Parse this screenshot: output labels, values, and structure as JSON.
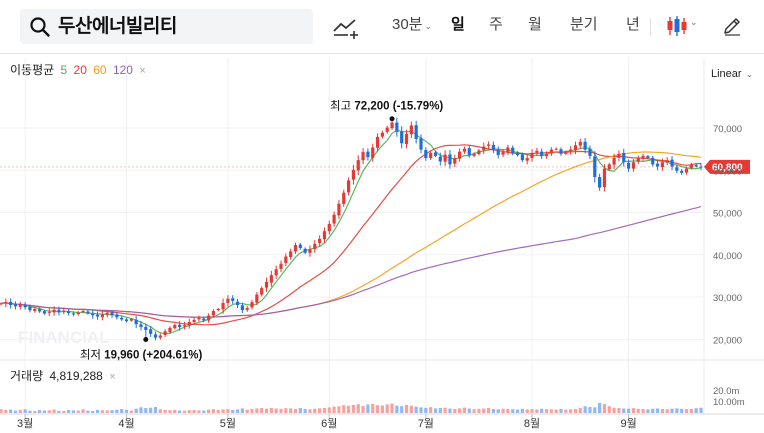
{
  "search": {
    "query": "두산에너빌리티"
  },
  "toolbar": {
    "intervals": [
      {
        "label": "30분",
        "active": false,
        "has_dropdown": true
      },
      {
        "label": "일",
        "active": true,
        "has_dropdown": false
      },
      {
        "label": "주",
        "active": false,
        "has_dropdown": false
      },
      {
        "label": "월",
        "active": false,
        "has_dropdown": false
      },
      {
        "label": "분기",
        "active": false,
        "has_dropdown": false
      },
      {
        "label": "년",
        "active": false,
        "has_dropdown": false
      }
    ],
    "icons": [
      "chart-type-icon",
      "candlestick-icon",
      "pencil-icon"
    ]
  },
  "legend": {
    "label": "이동평균",
    "periods": [
      {
        "label": "5",
        "color": "#4caf50"
      },
      {
        "label": "20",
        "color": "#e53935"
      },
      {
        "label": "60",
        "color": "#f39c12"
      },
      {
        "label": "120",
        "color": "#9b59b6"
      }
    ]
  },
  "scale_mode": "Linear",
  "current_price": {
    "label": "60,800",
    "value": 60800,
    "color": "#e53935"
  },
  "annotations": {
    "high": {
      "label": "최고",
      "value_text": "72,200 (-15.79%)",
      "value": 72200
    },
    "low": {
      "label": "최저",
      "value_text": "19,960 (+204.61%)",
      "value": 19960
    }
  },
  "volume": {
    "label": "거래량",
    "value_text": "4,819,288"
  },
  "watermark": "FINANCIAL",
  "chart_data": {
    "type": "candlestick",
    "x_axis": {
      "ticks": [
        "3월",
        "4월",
        "5월",
        "6월",
        "7월",
        "8월",
        "9월"
      ],
      "tick_index": [
        5,
        26,
        47,
        68,
        88,
        110,
        130
      ]
    },
    "y_axis": {
      "ticks": [
        "70,000",
        "60,000",
        "50,000",
        "40,000",
        "30,000",
        "20,000"
      ],
      "tick_values": [
        70000,
        60000,
        50000,
        40000,
        30000,
        20000
      ],
      "range": [
        17000,
        79000
      ]
    },
    "volume_axis": {
      "ticks": [
        "20.0m",
        "10.00m"
      ],
      "tick_values": [
        20,
        10
      ],
      "range": [
        0,
        30
      ]
    },
    "close": [
      28500,
      28800,
      28100,
      27800,
      28200,
      27600,
      26900,
      27200,
      26600,
      26100,
      26500,
      27000,
      26400,
      26800,
      26200,
      25900,
      26300,
      26700,
      26100,
      25700,
      25400,
      25900,
      26300,
      25700,
      25200,
      24700,
      24300,
      24800,
      23600,
      22900,
      22200,
      21300,
      20400,
      20900,
      21900,
      22700,
      23400,
      22900,
      23400,
      24100,
      24600,
      25100,
      24500,
      25600,
      26700,
      27200,
      28600,
      29600,
      29100,
      28100,
      26900,
      27400,
      28800,
      30600,
      32100,
      33600,
      35200,
      36600,
      37900,
      39600,
      40800,
      42300,
      41600,
      40500,
      41300,
      42600,
      43800,
      45600,
      47300,
      49500,
      52100,
      54700,
      57600,
      60100,
      62400,
      64300,
      63100,
      65400,
      67900,
      68900,
      70100,
      71300,
      69100,
      66400,
      68600,
      70600,
      67400,
      64900,
      62900,
      64100,
      63400,
      62100,
      63700,
      61400,
      62900,
      64400,
      65100,
      63600,
      63900,
      64700,
      65600,
      66100,
      64900,
      63600,
      64400,
      65400,
      64100,
      63600,
      62400,
      62900,
      64100,
      64600,
      63400,
      63900,
      64900,
      65100,
      63900,
      64400,
      64900,
      65900,
      66700,
      64900,
      63400,
      58400,
      55900,
      60400,
      61400,
      62900,
      63900,
      61900,
      60400,
      61900,
      62900,
      63400,
      62900,
      61400,
      60900,
      61900,
      62400,
      60900,
      59900,
      59400,
      60400,
      61400,
      60900,
      60800
    ],
    "volume_millions": [
      3.5,
      2.8,
      3.1,
      2.2,
      2.9,
      3.4,
      2.1,
      1.9,
      2.6,
      2.3,
      2.5,
      3.2,
      2.0,
      1.8,
      2.7,
      2.4,
      2.2,
      3.3,
      2.1,
      1.9,
      2.8,
      2.5,
      2.3,
      2.6,
      3.0,
      3.6,
      2.9,
      2.2,
      3.9,
      5.2,
      4.5,
      4.8,
      5.5,
      3.4,
      2.7,
      2.5,
      2.9,
      2.3,
      2.1,
      2.6,
      2.8,
      2.4,
      2.2,
      3.1,
      3.5,
      2.7,
      3.3,
      3.6,
      2.8,
      3.2,
      4.1,
      3.0,
      3.7,
      4.2,
      4.5,
      3.9,
      4.7,
      4.1,
      3.8,
      4.4,
      4.2,
      3.7,
      4.5,
      3.6,
      3.3,
      3.9,
      4.3,
      4.6,
      5.1,
      5.8,
      6.2,
      7.1,
      6.6,
      7.4,
      8.0,
      6.3,
      7.7,
      8.3,
      7.1,
      6.8,
      7.9,
      8.6,
      6.7,
      6.2,
      7.3,
      6.6,
      5.8,
      5.1,
      4.7,
      5.3,
      4.2,
      4.5,
      4.8,
      4.0,
      3.7,
      4.2,
      4.9,
      4.1,
      3.5,
      3.8,
      4.1,
      4.6,
      3.6,
      3.3,
      3.9,
      3.6,
      3.4,
      3.1,
      3.8,
      3.3,
      3.6,
      3.2,
      3.9,
      3.5,
      3.3,
      3.1,
      3.7,
      3.2,
      3.4,
      3.6,
      4.7,
      6.1,
      5.4,
      5.1,
      9.2,
      8.3,
      6.2,
      4.8,
      4.5,
      4.1,
      3.9,
      4.4,
      3.8,
      3.6,
      3.3,
      3.9,
      4.1,
      3.6,
      3.4,
      3.9,
      4.2,
      3.8,
      3.5,
      3.7,
      4.3,
      4.8
    ]
  }
}
